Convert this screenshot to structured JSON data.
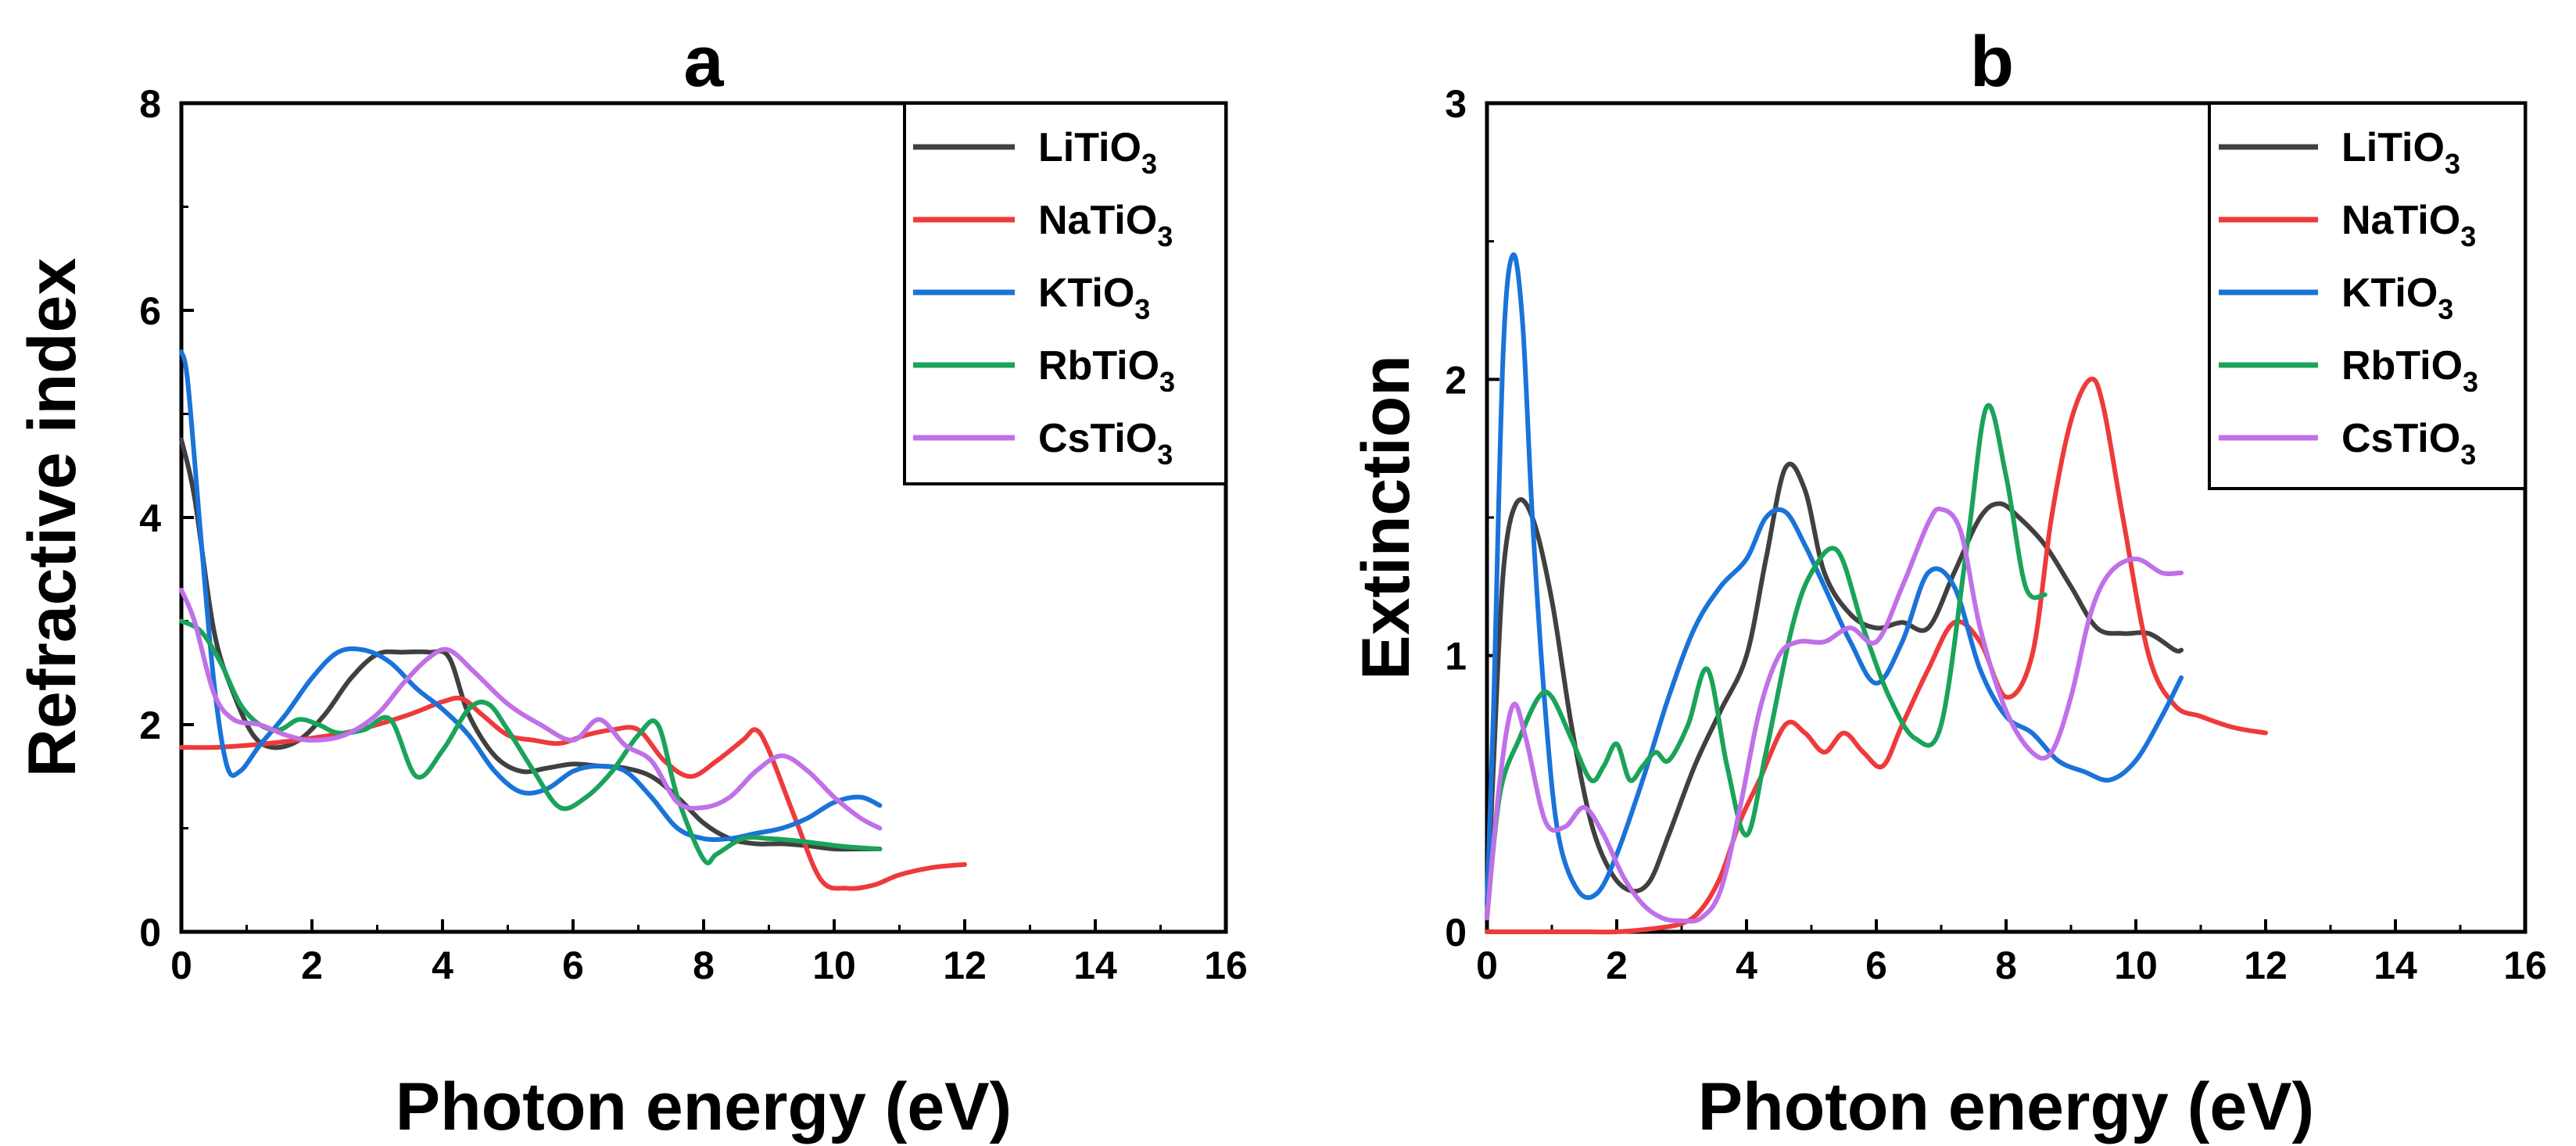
{
  "chart_data": [
    {
      "type": "line",
      "title": "a",
      "xlabel": "Photon energy (eV)",
      "ylabel": "Refractive index",
      "xlim": [
        0,
        16
      ],
      "ylim": [
        0,
        8
      ],
      "xticks": [
        0,
        2,
        4,
        6,
        8,
        10,
        12,
        14,
        16
      ],
      "yticks": [
        0,
        2,
        4,
        6,
        8
      ],
      "legend_position": "top-right",
      "series": [
        {
          "name": "LiTiO3",
          "color": "#404040",
          "x": [
            0,
            0.2,
            0.5,
            0.8,
            1.1,
            1.4,
            1.8,
            2.2,
            2.6,
            3.0,
            3.4,
            3.8,
            4.1,
            4.4,
            4.8,
            5.2,
            5.6,
            6.0,
            6.4,
            6.8,
            7.2,
            7.6,
            8.0,
            8.4,
            8.8,
            9.2,
            9.6,
            10.0,
            10.4,
            10.7
          ],
          "y": [
            4.75,
            4.2,
            2.9,
            2.3,
            1.9,
            1.78,
            1.85,
            2.1,
            2.45,
            2.68,
            2.7,
            2.7,
            2.65,
            2.1,
            1.7,
            1.55,
            1.58,
            1.62,
            1.6,
            1.58,
            1.5,
            1.3,
            1.05,
            0.9,
            0.85,
            0.85,
            0.83,
            0.8,
            0.8,
            0.8
          ]
        },
        {
          "name": "NaTiO3",
          "color": "#ee3a3a",
          "x": [
            0,
            0.5,
            1.0,
            1.5,
            2.0,
            2.5,
            3.0,
            3.5,
            4.0,
            4.3,
            4.6,
            5.0,
            5.4,
            5.8,
            6.2,
            6.6,
            7.0,
            7.4,
            7.8,
            8.2,
            8.6,
            8.8,
            9.0,
            9.4,
            9.8,
            10.2,
            10.6,
            11.0,
            11.5,
            12.0
          ],
          "y": [
            1.78,
            1.78,
            1.8,
            1.83,
            1.87,
            1.92,
            2.0,
            2.1,
            2.22,
            2.25,
            2.1,
            1.9,
            1.85,
            1.82,
            1.9,
            1.95,
            1.95,
            1.65,
            1.5,
            1.65,
            1.85,
            1.95,
            1.75,
            1.1,
            0.5,
            0.42,
            0.45,
            0.55,
            0.62,
            0.65
          ]
        },
        {
          "name": "KTiO3",
          "color": "#1a73d9",
          "x": [
            0,
            0.1,
            0.3,
            0.5,
            0.7,
            0.9,
            1.2,
            1.6,
            2.0,
            2.4,
            2.8,
            3.2,
            3.6,
            4.0,
            4.4,
            4.8,
            5.2,
            5.6,
            6.0,
            6.4,
            6.8,
            7.2,
            7.6,
            8.0,
            8.4,
            8.8,
            9.2,
            9.6,
            10.0,
            10.4,
            10.7
          ],
          "y": [
            5.6,
            5.3,
            3.8,
            2.4,
            1.6,
            1.55,
            1.8,
            2.1,
            2.45,
            2.7,
            2.72,
            2.6,
            2.35,
            2.15,
            1.9,
            1.55,
            1.35,
            1.38,
            1.55,
            1.6,
            1.55,
            1.3,
            1.0,
            0.9,
            0.9,
            0.95,
            1.0,
            1.1,
            1.25,
            1.3,
            1.22
          ]
        },
        {
          "name": "RbTiO3",
          "color": "#1aa35a",
          "x": [
            0,
            0.3,
            0.6,
            0.9,
            1.2,
            1.5,
            1.8,
            2.1,
            2.4,
            2.8,
            3.2,
            3.6,
            4.0,
            4.4,
            4.7,
            5.0,
            5.4,
            5.8,
            6.2,
            6.6,
            7.0,
            7.3,
            7.6,
            8.0,
            8.2,
            8.6,
            9.0,
            9.4,
            9.8,
            10.2,
            10.7
          ],
          "y": [
            3.0,
            2.9,
            2.6,
            2.2,
            2.0,
            1.95,
            2.05,
            2.0,
            1.92,
            1.95,
            2.05,
            1.5,
            1.75,
            2.15,
            2.2,
            1.95,
            1.55,
            1.2,
            1.3,
            1.55,
            1.9,
            2.0,
            1.3,
            0.7,
            0.75,
            0.9,
            0.9,
            0.88,
            0.85,
            0.82,
            0.8
          ]
        },
        {
          "name": "CsTiO3",
          "color": "#c070e8",
          "x": [
            0,
            0.2,
            0.5,
            0.8,
            1.2,
            1.6,
            2.0,
            2.5,
            3.0,
            3.4,
            3.8,
            4.1,
            4.5,
            5.0,
            5.5,
            6.0,
            6.4,
            6.8,
            7.2,
            7.6,
            8.0,
            8.4,
            8.8,
            9.2,
            9.6,
            10.0,
            10.4,
            10.7
          ],
          "y": [
            3.3,
            3.0,
            2.3,
            2.05,
            2.0,
            1.9,
            1.85,
            1.9,
            2.1,
            2.4,
            2.65,
            2.72,
            2.5,
            2.2,
            2.0,
            1.85,
            2.05,
            1.8,
            1.65,
            1.25,
            1.2,
            1.3,
            1.55,
            1.7,
            1.55,
            1.3,
            1.1,
            1.0
          ]
        }
      ]
    },
    {
      "type": "line",
      "title": "b",
      "xlabel": "Photon energy (eV)",
      "ylabel": "Extinction",
      "xlim": [
        0,
        16
      ],
      "ylim": [
        0,
        3
      ],
      "xticks": [
        0,
        2,
        4,
        6,
        8,
        10,
        12,
        14,
        16
      ],
      "yticks": [
        0,
        1,
        2,
        3
      ],
      "legend_position": "top-right",
      "series": [
        {
          "name": "LiTiO3",
          "color": "#404040",
          "x": [
            0,
            0.1,
            0.25,
            0.45,
            0.7,
            1.0,
            1.3,
            1.6,
            1.9,
            2.2,
            2.5,
            2.8,
            3.2,
            3.6,
            4.0,
            4.3,
            4.6,
            4.9,
            5.2,
            5.6,
            6.0,
            6.4,
            6.8,
            7.2,
            7.6,
            7.9,
            8.2,
            8.6,
            9.0,
            9.4,
            9.8,
            10.2,
            10.6,
            10.7
          ],
          "y": [
            0.05,
            0.6,
            1.3,
            1.55,
            1.5,
            1.2,
            0.75,
            0.4,
            0.22,
            0.15,
            0.18,
            0.35,
            0.6,
            0.8,
            1.0,
            1.35,
            1.68,
            1.6,
            1.3,
            1.15,
            1.1,
            1.12,
            1.1,
            1.3,
            1.5,
            1.55,
            1.5,
            1.4,
            1.25,
            1.1,
            1.08,
            1.08,
            1.02,
            1.02
          ]
        },
        {
          "name": "NaTiO3",
          "color": "#ee3a3a",
          "x": [
            0,
            0.5,
            1.0,
            1.5,
            2.0,
            2.5,
            3.0,
            3.3,
            3.6,
            3.9,
            4.2,
            4.6,
            4.9,
            5.2,
            5.5,
            5.8,
            6.1,
            6.4,
            6.8,
            7.2,
            7.6,
            8.0,
            8.4,
            8.7,
            9.0,
            9.3,
            9.5,
            9.8,
            10.2,
            10.6,
            11.0,
            11.5,
            12.0
          ],
          "y": [
            0.0,
            0.0,
            0.0,
            0.0,
            0.0,
            0.01,
            0.03,
            0.08,
            0.2,
            0.4,
            0.55,
            0.75,
            0.72,
            0.65,
            0.72,
            0.65,
            0.6,
            0.75,
            0.95,
            1.12,
            1.05,
            0.85,
            1.0,
            1.5,
            1.85,
            2.0,
            1.9,
            1.5,
            1.0,
            0.82,
            0.78,
            0.74,
            0.72
          ]
        },
        {
          "name": "KTiO3",
          "color": "#1a73d9",
          "x": [
            0,
            0.1,
            0.25,
            0.4,
            0.55,
            0.7,
            0.9,
            1.1,
            1.4,
            1.7,
            2.0,
            2.4,
            2.8,
            3.2,
            3.6,
            4.0,
            4.3,
            4.6,
            4.9,
            5.2,
            5.6,
            6.0,
            6.4,
            6.8,
            7.2,
            7.6,
            8.0,
            8.4,
            8.8,
            9.2,
            9.6,
            10.0,
            10.4,
            10.7
          ],
          "y": [
            0.1,
            0.8,
            2.1,
            2.45,
            2.2,
            1.5,
            0.8,
            0.35,
            0.15,
            0.14,
            0.28,
            0.55,
            0.85,
            1.1,
            1.25,
            1.35,
            1.5,
            1.52,
            1.4,
            1.25,
            1.05,
            0.9,
            1.05,
            1.3,
            1.25,
            0.95,
            0.78,
            0.72,
            0.62,
            0.58,
            0.55,
            0.62,
            0.78,
            0.92
          ]
        },
        {
          "name": "RbTiO3",
          "color": "#1aa35a",
          "x": [
            0,
            0.2,
            0.5,
            0.8,
            1.0,
            1.3,
            1.6,
            1.8,
            2.0,
            2.2,
            2.4,
            2.6,
            2.8,
            3.1,
            3.4,
            3.7,
            4.0,
            4.3,
            4.7,
            5.0,
            5.4,
            5.8,
            6.2,
            6.6,
            7.0,
            7.4,
            7.7,
            8.0,
            8.3,
            8.6
          ],
          "y": [
            0.05,
            0.5,
            0.7,
            0.85,
            0.85,
            0.7,
            0.55,
            0.6,
            0.68,
            0.55,
            0.6,
            0.65,
            0.62,
            0.75,
            0.95,
            0.6,
            0.35,
            0.65,
            1.1,
            1.3,
            1.38,
            1.1,
            0.85,
            0.7,
            0.75,
            1.4,
            1.9,
            1.65,
            1.25,
            1.22
          ]
        },
        {
          "name": "CsTiO3",
          "color": "#c070e8",
          "x": [
            0,
            0.2,
            0.4,
            0.6,
            0.9,
            1.2,
            1.5,
            1.8,
            2.1,
            2.4,
            2.7,
            3.0,
            3.3,
            3.6,
            3.9,
            4.2,
            4.5,
            4.8,
            5.2,
            5.6,
            6.0,
            6.4,
            6.8,
            7.0,
            7.3,
            7.6,
            8.0,
            8.4,
            8.7,
            9.0,
            9.3,
            9.6,
            10.0,
            10.4,
            10.7
          ],
          "y": [
            0.05,
            0.55,
            0.82,
            0.7,
            0.4,
            0.38,
            0.45,
            0.35,
            0.2,
            0.1,
            0.05,
            0.04,
            0.05,
            0.15,
            0.45,
            0.8,
            1.0,
            1.05,
            1.05,
            1.1,
            1.05,
            1.25,
            1.48,
            1.53,
            1.45,
            1.1,
            0.8,
            0.65,
            0.65,
            0.85,
            1.15,
            1.3,
            1.35,
            1.3,
            1.3
          ]
        }
      ]
    }
  ]
}
